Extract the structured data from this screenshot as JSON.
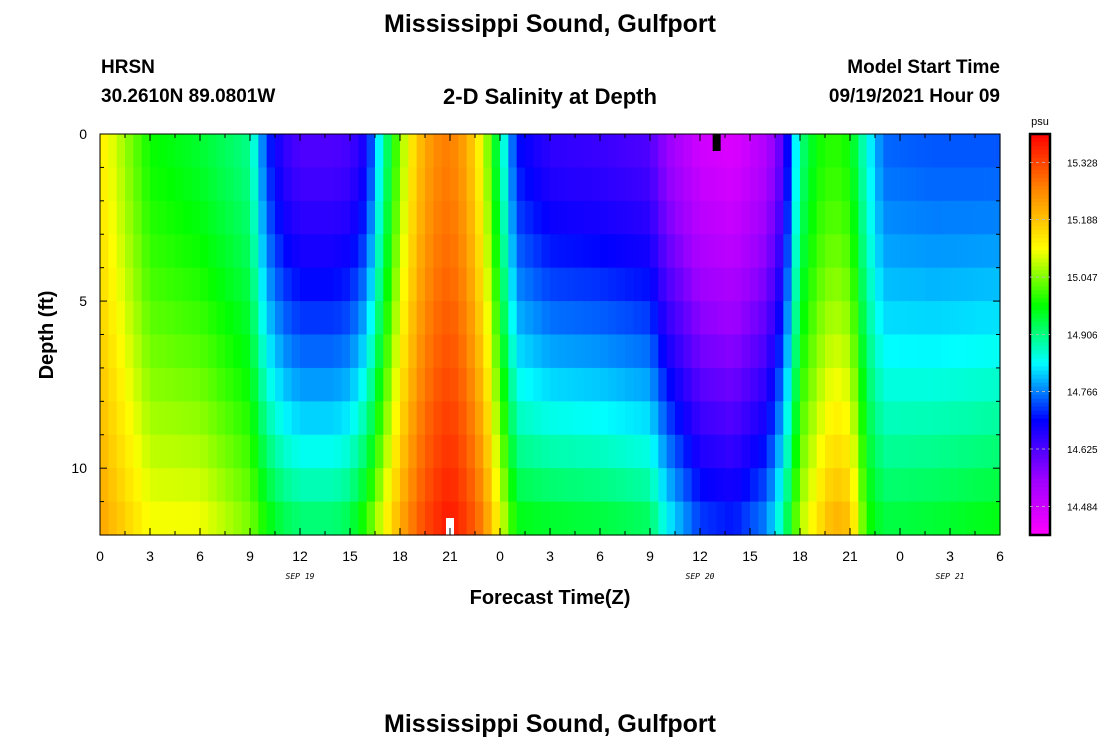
{
  "header": {
    "title_top": "Mississippi Sound, Gulfport",
    "station_code": "HRSN",
    "station_coords": "30.2610N  89.0801W",
    "product": "2-D Salinity at Depth",
    "model_start_label": "Model Start Time",
    "model_start_value": "09/19/2021 Hour 09",
    "title_bottom": "Mississippi Sound, Gulfport"
  },
  "chart_data": {
    "type": "heatmap",
    "xlabel": "Forecast Time(Z)",
    "ylabel": "Depth (ft)",
    "x_tick_labels": [
      "0",
      "3",
      "6",
      "9",
      "12",
      "15",
      "18",
      "21",
      "0",
      "3",
      "6",
      "9",
      "12",
      "15",
      "18",
      "21",
      "0",
      "3",
      "6"
    ],
    "x_range_hours": [
      0,
      54
    ],
    "x_tick_step_hours": 3,
    "date_labels": [
      {
        "hour": 12,
        "text": "SEP 19"
      },
      {
        "hour": 36,
        "text": "SEP 20"
      },
      {
        "hour": 51,
        "text": "SEP 21"
      }
    ],
    "y_range_ft": [
      0,
      12
    ],
    "y_tick_labels": [
      {
        "value": 0,
        "text": "0"
      },
      {
        "value": 5,
        "text": "5"
      },
      {
        "value": 10,
        "text": "10"
      }
    ],
    "colorbar": {
      "unit": "psu",
      "min": 14.414,
      "max": 15.398,
      "tick_labels": [
        "15.328",
        "15.188",
        "15.047",
        "14.906",
        "14.766",
        "14.625",
        "14.484"
      ],
      "tick_values": [
        15.328,
        15.188,
        15.047,
        14.906,
        14.766,
        14.625,
        14.484
      ],
      "colors": [
        "#ff00ff",
        "#9900ff",
        "#0000ff",
        "#00ffff",
        "#00ff00",
        "#ffff00",
        "#ff8800",
        "#ff0000"
      ]
    },
    "markers": [
      {
        "hour": 37,
        "depth_ft": 0,
        "color": "#000000"
      },
      {
        "hour": 21,
        "depth_ft": 12,
        "color": "#ffffff"
      }
    ],
    "time_profile": [
      {
        "hour": 0,
        "surface": 15.14,
        "bottom": 15.23
      },
      {
        "hour": 3,
        "surface": 14.98,
        "bottom": 15.12
      },
      {
        "hour": 6,
        "surface": 14.95,
        "bottom": 15.12
      },
      {
        "hour": 9,
        "surface": 14.9,
        "bottom": 15.05
      },
      {
        "hour": 10,
        "surface": 14.72,
        "bottom": 14.99
      },
      {
        "hour": 11,
        "surface": 14.65,
        "bottom": 14.95
      },
      {
        "hour": 12,
        "surface": 14.62,
        "bottom": 14.93
      },
      {
        "hour": 14,
        "surface": 14.62,
        "bottom": 14.93
      },
      {
        "hour": 15,
        "surface": 14.63,
        "bottom": 14.95
      },
      {
        "hour": 16,
        "surface": 14.68,
        "bottom": 15.02
      },
      {
        "hour": 17,
        "surface": 14.88,
        "bottom": 15.12
      },
      {
        "hour": 18,
        "surface": 15.05,
        "bottom": 15.22
      },
      {
        "hour": 19,
        "surface": 15.18,
        "bottom": 15.3
      },
      {
        "hour": 20,
        "surface": 15.25,
        "bottom": 15.35
      },
      {
        "hour": 21,
        "surface": 15.27,
        "bottom": 15.38
      },
      {
        "hour": 22,
        "surface": 15.22,
        "bottom": 15.34
      },
      {
        "hour": 23,
        "surface": 15.1,
        "bottom": 15.27
      },
      {
        "hour": 24,
        "surface": 14.9,
        "bottom": 15.12
      },
      {
        "hour": 25,
        "surface": 14.7,
        "bottom": 14.98
      },
      {
        "hour": 27,
        "surface": 14.65,
        "bottom": 14.97
      },
      {
        "hour": 30,
        "surface": 14.64,
        "bottom": 14.96
      },
      {
        "hour": 33,
        "surface": 14.62,
        "bottom": 14.94
      },
      {
        "hour": 34,
        "surface": 14.55,
        "bottom": 14.85
      },
      {
        "hour": 36,
        "surface": 14.48,
        "bottom": 14.74
      },
      {
        "hour": 38,
        "surface": 14.46,
        "bottom": 14.72
      },
      {
        "hour": 40,
        "surface": 14.52,
        "bottom": 14.78
      },
      {
        "hour": 41,
        "surface": 14.62,
        "bottom": 14.9
      },
      {
        "hour": 42,
        "surface": 14.9,
        "bottom": 15.08
      },
      {
        "hour": 43,
        "surface": 14.98,
        "bottom": 15.15
      },
      {
        "hour": 44,
        "surface": 15.0,
        "bottom": 15.22
      },
      {
        "hour": 45,
        "surface": 14.98,
        "bottom": 15.2
      },
      {
        "hour": 46,
        "surface": 14.85,
        "bottom": 15.0
      },
      {
        "hour": 47,
        "surface": 14.75,
        "bottom": 14.95
      },
      {
        "hour": 50,
        "surface": 14.74,
        "bottom": 14.96
      },
      {
        "hour": 54,
        "surface": 14.74,
        "bottom": 14.98
      }
    ]
  }
}
